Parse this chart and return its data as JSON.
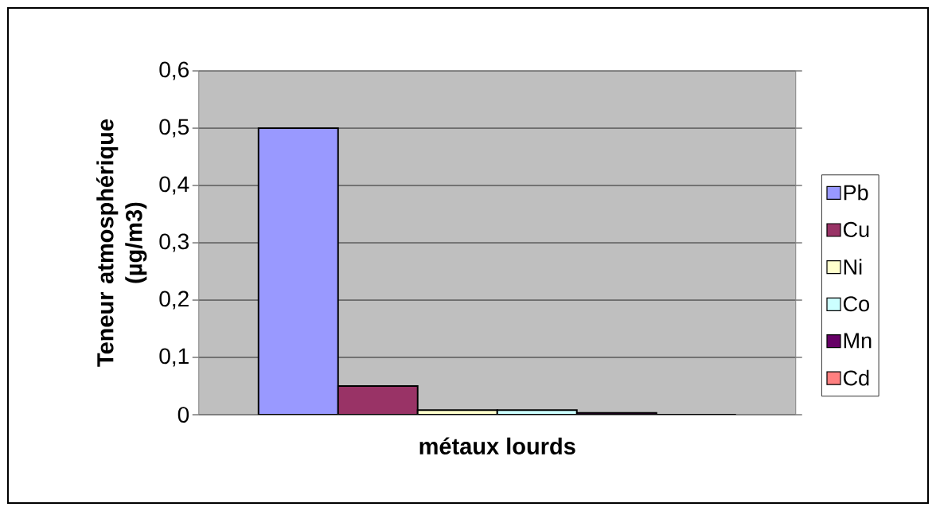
{
  "chart_data": {
    "type": "bar",
    "xlabel": "métaux lourds",
    "ylabel": "Teneur atmosphérique (µg/m3)",
    "categories": [
      null
    ],
    "series": [
      {
        "name": "Pb",
        "color": "#9999ff",
        "values": [
          0.5
        ]
      },
      {
        "name": "Cu",
        "color": "#993366",
        "values": [
          0.05
        ]
      },
      {
        "name": "Ni",
        "color": "#ffffcc",
        "values": [
          0.008
        ]
      },
      {
        "name": "Co",
        "color": "#ccffff",
        "values": [
          0.008
        ]
      },
      {
        "name": "Mn",
        "color": "#660066",
        "values": [
          0.003
        ]
      },
      {
        "name": "Cd",
        "color": "#ff8080",
        "values": [
          0
        ]
      }
    ],
    "ylim": [
      0,
      0.6
    ],
    "yticks": [
      0,
      {
        "value": 0.1,
        "label": "0,1"
      },
      {
        "value": 0.2,
        "label": "0,2"
      },
      {
        "value": 0.3,
        "label": "0,3"
      },
      {
        "value": 0.4,
        "label": "0,4"
      },
      {
        "value": 0.5,
        "label": "0,5"
      },
      {
        "value": 0.6,
        "label": "0,6"
      }
    ],
    "grid": "y",
    "legend": "right"
  }
}
